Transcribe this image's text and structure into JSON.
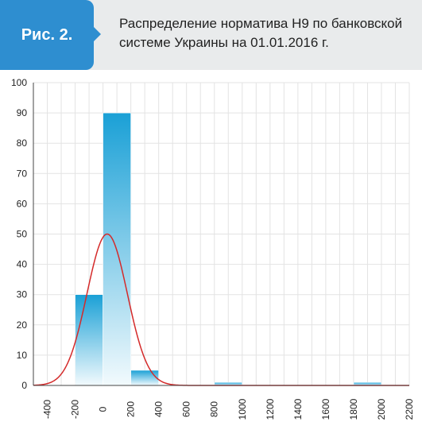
{
  "header": {
    "badge": "Рис. 2.",
    "title": "Распределение норматива Н9 по банковской системе Украины на 01.01.2016 г."
  },
  "colors": {
    "badge": "#2e8ed0",
    "header_bg": "#e9ebec",
    "bar_top": "#1aa0d6",
    "bar_bottom": "#f2fafd",
    "curve": "#d42a2a",
    "grid": "#e3e3e3"
  },
  "chart_data": {
    "type": "bar",
    "title": "Распределение норматива Н9 по банковской системе Украины на 01.01.2016 г.",
    "xlabel": "",
    "ylabel": "",
    "ylim": [
      0,
      100
    ],
    "xlim": [
      -500,
      2200
    ],
    "y_ticks": [
      "0",
      "10",
      "20",
      "30",
      "40",
      "50",
      "60",
      "70",
      "80",
      "90",
      "100"
    ],
    "x_ticks": [
      "-400",
      "-200",
      "0",
      "200",
      "400",
      "600",
      "800",
      "1000",
      "1200",
      "1400",
      "1600",
      "1800",
      "2000",
      "2200"
    ],
    "bins": [
      {
        "from": -200,
        "to": 0,
        "value": 30
      },
      {
        "from": 0,
        "to": 200,
        "value": 90
      },
      {
        "from": 200,
        "to": 400,
        "value": 5
      },
      {
        "from": 800,
        "to": 1000,
        "value": 1
      },
      {
        "from": 1800,
        "to": 2000,
        "value": 1
      }
    ],
    "curve": {
      "type": "normal",
      "mean": 30,
      "sd": 145,
      "peak": 50
    },
    "grid": true,
    "legend": "none"
  }
}
